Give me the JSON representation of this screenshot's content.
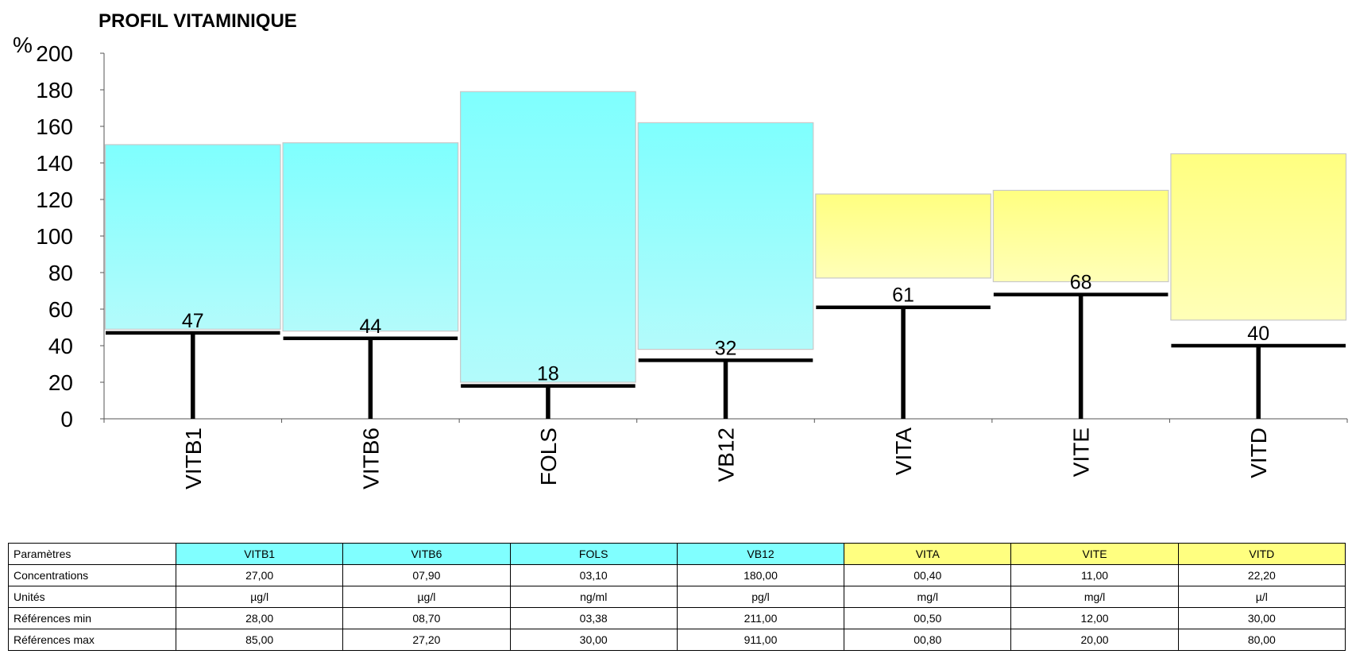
{
  "chart_data": {
    "type": "bar",
    "title": "PROFIL VITAMINIQUE",
    "ylabel": "%",
    "ylim": [
      0,
      200
    ],
    "yticks": [
      0,
      20,
      40,
      60,
      80,
      100,
      120,
      140,
      160,
      180,
      200
    ],
    "grid": false,
    "categories": [
      "VITB1",
      "VITB6",
      "FOLS",
      "VB12",
      "VITA",
      "VITE",
      "VITD"
    ],
    "reference_range_percent": [
      {
        "category": "VITB1",
        "low": 49,
        "high": 150
      },
      {
        "category": "VITB6",
        "low": 48,
        "high": 151
      },
      {
        "category": "FOLS",
        "low": 20,
        "high": 179
      },
      {
        "category": "VB12",
        "low": 38,
        "high": 162
      },
      {
        "category": "VITA",
        "low": 77,
        "high": 123
      },
      {
        "category": "VITE",
        "low": 75,
        "high": 125
      },
      {
        "category": "VITD",
        "low": 54,
        "high": 145
      }
    ],
    "values": [
      47,
      44,
      18,
      32,
      61,
      68,
      40
    ],
    "colors": {
      "cyan_top": "#7ffffe",
      "cyan_bottom": "#b3fbfb",
      "yellow_top": "#ffff80",
      "yellow_bottom": "#ffffb8",
      "marker": "#000000"
    }
  },
  "table": {
    "header_label": "Paramètres",
    "columns": [
      {
        "name": "VITB1",
        "color": "#80ffff"
      },
      {
        "name": "VITB6",
        "color": "#80ffff"
      },
      {
        "name": "FOLS",
        "color": "#80ffff"
      },
      {
        "name": "VB12",
        "color": "#80ffff"
      },
      {
        "name": "VITA",
        "color": "#ffff80"
      },
      {
        "name": "VITE",
        "color": "#ffff80"
      },
      {
        "name": "VITD",
        "color": "#ffff80"
      }
    ],
    "rows": [
      {
        "label": "Concentrations",
        "values": [
          "27,00",
          "07,90",
          "03,10",
          "180,00",
          "00,40",
          "11,00",
          "22,20"
        ]
      },
      {
        "label": "Unités",
        "values": [
          "µg/l",
          "µg/l",
          "ng/ml",
          "pg/l",
          "mg/l",
          "mg/l",
          "µ/l"
        ]
      },
      {
        "label": "Références min",
        "values": [
          "28,00",
          "08,70",
          "03,38",
          "211,00",
          "00,50",
          "12,00",
          "30,00"
        ]
      },
      {
        "label": "Références max",
        "values": [
          "85,00",
          "27,20",
          "30,00",
          "911,00",
          "00,80",
          "20,00",
          "80,00"
        ]
      }
    ]
  }
}
